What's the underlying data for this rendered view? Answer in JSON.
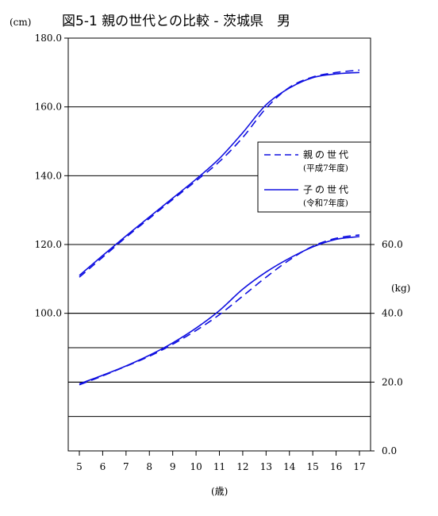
{
  "chart_data": {
    "type": "line",
    "title": "図5-1 親の世代との比較 - 茨城県　男",
    "x": [
      5,
      6,
      7,
      8,
      9,
      10,
      11,
      12,
      13,
      14,
      15,
      16,
      17
    ],
    "xlabel": "(歳)",
    "height_axis": {
      "unit": "(cm)",
      "ticks": [
        "180.0",
        "160.0",
        "140.0",
        "120.0",
        "100.0"
      ],
      "ylim": [
        60,
        180
      ]
    },
    "weight_axis": {
      "unit": "(kg)",
      "ticks": [
        "60.0",
        "40.0",
        "20.0",
        "0.0"
      ],
      "ylim": [
        0,
        60
      ]
    },
    "legend": [
      {
        "name": "親の世代",
        "sub": "(平成7年度)",
        "style": "dashed"
      },
      {
        "name": "子の世代",
        "sub": "(令和7年度)",
        "style": "solid"
      }
    ],
    "series": [
      {
        "name": "親の世代",
        "measure": "height",
        "values": [
          110.5,
          116.3,
          122.1,
          127.6,
          133.1,
          138.5,
          144.1,
          151.1,
          159.6,
          165.7,
          168.7,
          170.0,
          170.7
        ]
      },
      {
        "name": "子の世代",
        "measure": "height",
        "values": [
          111.0,
          116.8,
          122.5,
          128.0,
          133.5,
          139.0,
          145.0,
          152.5,
          160.6,
          165.5,
          168.5,
          169.6,
          170.0
        ]
      },
      {
        "name": "親の世代",
        "measure": "weight",
        "values": [
          19.2,
          21.8,
          24.6,
          27.5,
          31.0,
          35.0,
          39.6,
          45.0,
          50.5,
          55.5,
          59.5,
          61.8,
          62.8
        ]
      },
      {
        "name": "子の世代",
        "measure": "weight",
        "values": [
          19.5,
          22.0,
          24.7,
          27.8,
          31.4,
          35.7,
          40.8,
          47.0,
          52.0,
          56.0,
          59.3,
          61.5,
          62.3
        ]
      }
    ],
    "color": "#1010e0",
    "grid": true,
    "legend_position": "right"
  }
}
